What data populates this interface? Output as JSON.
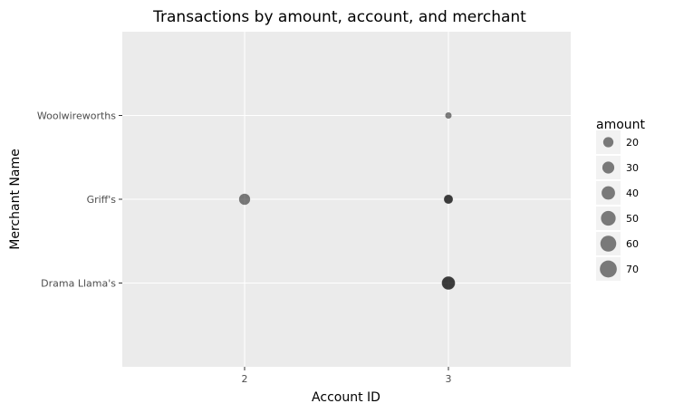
{
  "chart_data": {
    "type": "scatter",
    "title": "Transactions by amount, account, and merchant",
    "xlabel": "Account ID",
    "ylabel": "Merchant Name",
    "x_ticks": [
      "2",
      "3"
    ],
    "x_range": [
      1.4,
      3.6
    ],
    "y_categories": [
      "Drama Llama's",
      "Griff's",
      "Woolwireworths"
    ],
    "grid": true,
    "legend_position": "right",
    "size_legend": {
      "title": "amount",
      "breaks": [
        "20",
        "30",
        "40",
        "50",
        "60",
        "70"
      ]
    },
    "points": [
      {
        "account_id": 3,
        "merchant": "Woolwireworths",
        "amount": 5
      },
      {
        "account_id": 2,
        "merchant": "Griff's",
        "amount": 25
      },
      {
        "account_id": 3,
        "merchant": "Griff's",
        "amount": 12
      },
      {
        "account_id": 3,
        "merchant": "Griff's",
        "amount": 15
      },
      {
        "account_id": 3,
        "merchant": "Drama Llama's",
        "amount": 35
      },
      {
        "account_id": 3,
        "merchant": "Drama Llama's",
        "amount": 40
      }
    ],
    "colors": {
      "panel": "#ebebeb",
      "grid": "#ffffff",
      "point": "#000000"
    }
  }
}
